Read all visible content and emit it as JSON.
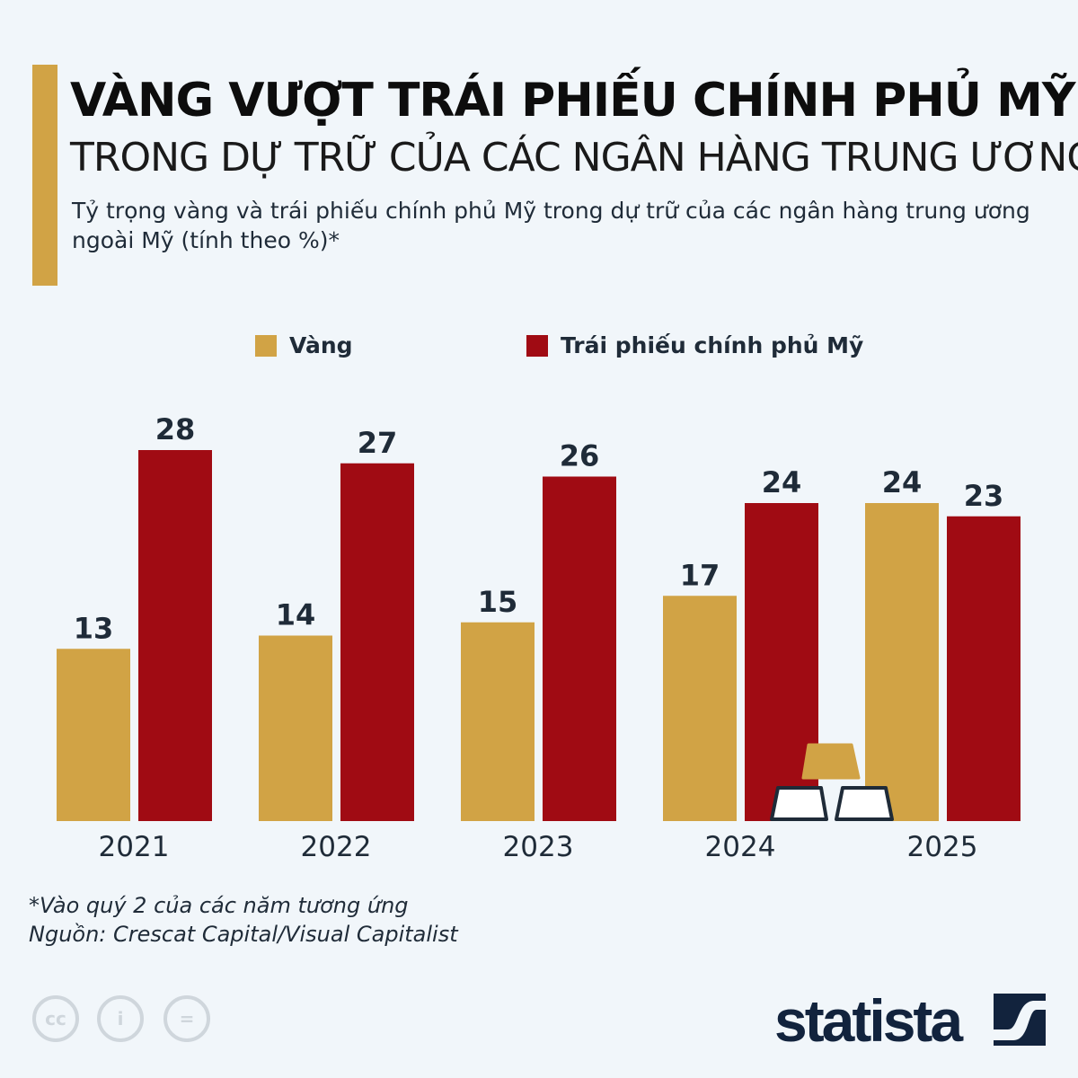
{
  "header": {
    "title": "VÀNG VƯỢT TRÁI PHIẾU CHÍNH PHỦ MỸ",
    "subtitle": "TRONG DỰ TRỮ CỦA CÁC NGÂN HÀNG TRUNG ƯƠNG",
    "description": "Tỷ trọng vàng và trái phiếu chính phủ Mỹ trong dự trữ của các ngân hàng trung ương ngoài Mỹ (tính theo %)*"
  },
  "chart_data": {
    "type": "bar",
    "categories": [
      "2021",
      "2022",
      "2023",
      "2024",
      "2025"
    ],
    "series": [
      {
        "name": "Vàng",
        "values": [
          13,
          14,
          15,
          17,
          24
        ],
        "color": "#d1a345"
      },
      {
        "name": "Trái phiếu chính phủ Mỹ",
        "values": [
          28,
          27,
          26,
          24,
          23
        ],
        "color": "#a00b13"
      }
    ],
    "ylim": [
      0,
      28
    ],
    "grid": false,
    "legend": "top",
    "data_labels": true
  },
  "footer": {
    "note": "*Vào quý 2 của các năm tương ứng",
    "source": "Nguồn: Crescat Capital/Visual Capitalist",
    "logo": "statista",
    "license_icons": [
      "cc-icon",
      "attribution-icon",
      "no-derivatives-icon"
    ]
  }
}
